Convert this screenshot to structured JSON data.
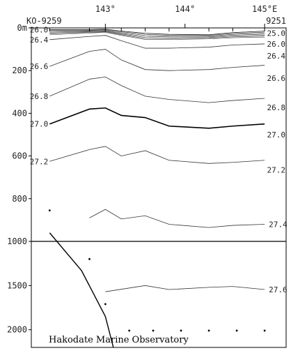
{
  "chart_data": {
    "type": "line",
    "title": "",
    "xlabel": "",
    "ylabel": "",
    "station_start": "KO-9259",
    "station_end": "9251",
    "credit": "Hakodate Marine Observatory",
    "x_ticks": [
      {
        "value": 143,
        "label": "143°"
      },
      {
        "value": 144,
        "label": "144°"
      },
      {
        "value": 145,
        "label": "145°E"
      }
    ],
    "y_ticks": [
      {
        "value": 0,
        "label": "0m"
      },
      {
        "value": 200,
        "label": "200"
      },
      {
        "value": 400,
        "label": "400"
      },
      {
        "value": 600,
        "label": "600"
      },
      {
        "value": 800,
        "label": "800"
      },
      {
        "value": 1000,
        "label": "1000"
      },
      {
        "value": 1500,
        "label": "1500"
      },
      {
        "value": 2000,
        "label": "2000"
      }
    ],
    "xlim": [
      142.07,
      145.27
    ],
    "ylim": [
      0,
      2200
    ],
    "y_break": 1000,
    "stations_x": [
      142.3,
      142.8,
      143.0,
      143.2,
      143.5,
      143.8,
      144.3,
      144.6,
      145.0
    ],
    "isopycnals": [
      {
        "label": "26.0",
        "label_side": "left",
        "bold": false,
        "x": [
          142.3,
          142.8,
          143.0,
          143.2,
          143.5,
          143.8,
          144.3,
          144.6,
          145.0
        ],
        "y": [
          8,
          8,
          6,
          15,
          25,
          30,
          32,
          22,
          15
        ]
      },
      {
        "label": "26.4",
        "label_side": "left",
        "bold": false,
        "x": [
          142.3,
          142.8,
          143.0,
          143.2,
          143.5,
          143.8,
          144.3,
          144.6,
          145.0
        ],
        "y": [
          55,
          40,
          35,
          60,
          95,
          95,
          90,
          80,
          75
        ]
      },
      {
        "label": "26.6",
        "label_side": "left",
        "bold": false,
        "x": [
          142.3,
          142.8,
          143.0,
          143.2,
          143.5,
          143.8,
          144.3,
          144.6,
          145.0
        ],
        "y": [
          180,
          110,
          100,
          150,
          195,
          200,
          195,
          185,
          175
        ]
      },
      {
        "label": "26.8",
        "label_side": "left",
        "bold": false,
        "x": [
          142.3,
          142.8,
          143.0,
          143.2,
          143.5,
          143.8,
          144.3,
          144.6,
          145.0
        ],
        "y": [
          320,
          240,
          230,
          270,
          320,
          335,
          350,
          340,
          330
        ]
      },
      {
        "label": "27.0",
        "label_side": "left",
        "bold": true,
        "x": [
          142.3,
          142.8,
          143.0,
          143.2,
          143.5,
          143.8,
          144.3,
          144.6,
          145.0
        ],
        "y": [
          450,
          380,
          375,
          410,
          420,
          460,
          470,
          460,
          450
        ]
      },
      {
        "label": "27.2",
        "label_side": "left",
        "bold": false,
        "x": [
          142.3,
          142.8,
          143.0,
          143.2,
          143.5,
          143.8,
          144.3,
          144.6,
          145.0
        ],
        "y": [
          625,
          570,
          555,
          600,
          575,
          620,
          635,
          630,
          620
        ]
      },
      {
        "label": "27.4",
        "label_side": "right",
        "bold": false,
        "x": [
          142.8,
          143.0,
          143.2,
          143.5,
          143.8,
          144.3,
          144.6,
          145.0
        ],
        "y": [
          890,
          850,
          895,
          880,
          920,
          935,
          925,
          920
        ]
      },
      {
        "label": "27.6",
        "label_side": "right",
        "bold": false,
        "x": [
          143.0,
          143.5,
          143.8,
          144.3,
          144.6,
          145.0
        ],
        "y": [
          1570,
          1500,
          1545,
          1520,
          1510,
          1545
        ]
      }
    ],
    "right_labels": [
      {
        "label": "25.0",
        "y": 25
      },
      {
        "label": "26.0",
        "y": 75
      },
      {
        "label": "26.4",
        "y": 130
      },
      {
        "label": "26.6",
        "y": 235
      },
      {
        "label": "26.8",
        "y": 372
      },
      {
        "label": "27.0",
        "y": 500
      },
      {
        "label": "27.2",
        "y": 665
      }
    ],
    "sample_points": [
      {
        "x": 142.3,
        "y": 855
      },
      {
        "x": 142.8,
        "y": 1200
      },
      {
        "x": 143.0,
        "y": 1710
      },
      {
        "x": 143.3,
        "y": 2010
      },
      {
        "x": 143.6,
        "y": 2010
      },
      {
        "x": 143.95,
        "y": 2010
      },
      {
        "x": 144.3,
        "y": 2010
      },
      {
        "x": 144.65,
        "y": 2010
      },
      {
        "x": 145.0,
        "y": 2010
      }
    ],
    "bottom_profile": {
      "x": [
        142.3,
        142.7,
        143.0,
        143.1
      ],
      "y": [
        960,
        1330,
        1850,
        2200
      ]
    }
  }
}
